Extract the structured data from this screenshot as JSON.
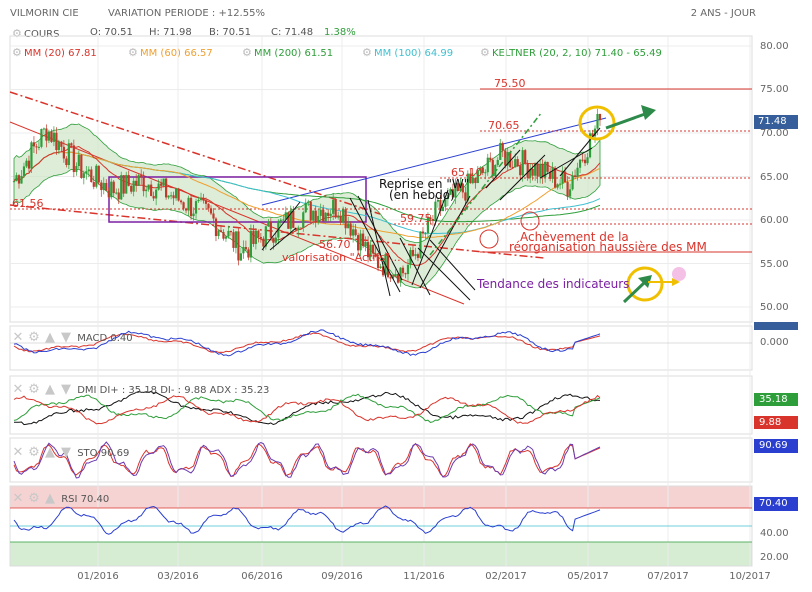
{
  "header": {
    "instrument": "VILMORIN CIE",
    "variation": "VARIATION PERIODE : +12.55%",
    "period": "2 ANS - JOUR"
  },
  "indicators": {
    "cours": "COURS",
    "open": "O: 70.51",
    "high": "H: 71.98",
    "low": "B: 70.51",
    "close": "C: 71.48",
    "close_pct": "1.38%",
    "mm20": "MM (20)",
    "mm20_val": "67.81",
    "mm60": "MM (60)",
    "mm60_val": "66.57",
    "mm200": "MM (200)",
    "mm200_val": "61.51",
    "mm100": "MM (100)",
    "mm100_val": "64.99",
    "keltner": "KELTNER (20, 2, 10)",
    "keltner_val": "71.40 - 65.49"
  },
  "colors": {
    "mm20": "#d9342b",
    "mm60": "#f0a030",
    "mm200": "#2e9e3a",
    "mm100": "#3fc0d0",
    "keltner": "#2e9e3a",
    "candle_up": "#2e9e3a",
    "candle_down": "#c0392b",
    "annotation_red": "#d9342b",
    "annotation_purple": "#7b1fa2",
    "highlight_yellow": "#f0c000"
  },
  "price_axis": {
    "ticks": [
      "80.00",
      "75.00",
      "70.00",
      "65.00",
      "60.00",
      "55.00",
      "50.00"
    ],
    "current": "71.48"
  },
  "annotations": {
    "l7550": "75.50",
    "l7065": "70.65",
    "l6510": "65.10",
    "l5975": "59.75",
    "l5670": "56.70",
    "l6156": "61.56",
    "reprise1": "Reprise en \"W\"",
    "reprise2": "(en hebdo)",
    "valorisation": "valorisation \"Actifs\"...",
    "achevement1": "Achèvement de la",
    "achevement2": "réorganisation haussière des MM",
    "tendance": "Tendance des indicateurs"
  },
  "panels": {
    "macd": {
      "label": "MACD",
      "value": "0.40",
      "axis": "0.000"
    },
    "dmi": {
      "label": "DMI",
      "di_plus": "DI+ : 35.18",
      "di_minus": "DI- : 9.88",
      "adx": "ADX : 35.23",
      "badge1": "35.18",
      "badge2": "9.88"
    },
    "sto": {
      "label": "STO",
      "value": "90.69",
      "badge": "90.69"
    },
    "rsi": {
      "label": "RSI",
      "value": "70.40",
      "badge": "70.40",
      "axis1": "40.00",
      "axis2": "20.00"
    }
  },
  "x_axis": [
    "01/2016",
    "03/2016",
    "06/2016",
    "09/2016",
    "11/2016",
    "02/2017",
    "05/2017",
    "07/2017",
    "10/2017"
  ],
  "chart_data": {
    "type": "line",
    "title": "VILMORIN CIE",
    "ylim": [
      48,
      82
    ],
    "x": [
      "11/2015",
      "12/2015",
      "01/2016",
      "02/2016",
      "03/2016",
      "04/2016",
      "05/2016",
      "06/2016",
      "07/2016",
      "08/2016",
      "09/2016",
      "10/2016",
      "11/2016",
      "12/2016",
      "01/2017",
      "02/2017",
      "03/2017",
      "04/2017",
      "05/2017"
    ],
    "series": [
      {
        "name": "COURS",
        "values": [
          64.5,
          70.5,
          66.0,
          63.5,
          64.5,
          62.5,
          60.5,
          56.5,
          59.0,
          61.0,
          61.5,
          55.5,
          54.0,
          61.0,
          64.0,
          67.5,
          66.0,
          64.0,
          71.48
        ]
      }
    ],
    "levels": [
      75.5,
      70.65,
      65.1,
      59.75,
      56.7,
      61.56
    ]
  }
}
